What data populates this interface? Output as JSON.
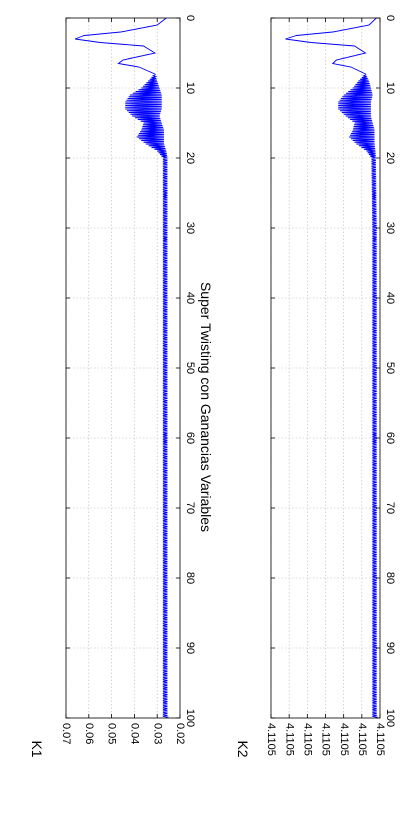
{
  "chart_data": [
    {
      "type": "line",
      "title": "Super Twisting con Ganancias Variables",
      "xlabel": "",
      "ylabel": "K1",
      "xlim": [
        0,
        100
      ],
      "ylim": [
        0.02,
        0.07
      ],
      "x_ticks": [
        "0",
        "10",
        "20",
        "30",
        "40",
        "50",
        "60",
        "70",
        "80",
        "90",
        "100"
      ],
      "y_ticks": [
        "0.02",
        "0.03",
        "0.04",
        "0.05",
        "0.06",
        "0.07"
      ],
      "grid": true,
      "color": "#0000ff",
      "series": [
        {
          "x": [
            0,
            1,
            2,
            2.5,
            3,
            3.5,
            4,
            5,
            6,
            6.5,
            7,
            8,
            9,
            10,
            11,
            12,
            13,
            14,
            15,
            16,
            17,
            18,
            19,
            20,
            30,
            40,
            50,
            60,
            70,
            80,
            90,
            100
          ],
          "y": [
            0.026,
            0.03,
            0.046,
            0.062,
            0.066,
            0.055,
            0.036,
            0.031,
            0.045,
            0.047,
            0.038,
            0.031,
            0.032,
            0.033,
            0.035,
            0.036,
            0.036,
            0.035,
            0.032,
            0.032,
            0.033,
            0.031,
            0.028,
            0.0265,
            0.0265,
            0.0265,
            0.0265,
            0.0265,
            0.0265,
            0.0265,
            0.0265,
            0.0265
          ],
          "ripple": [
            0,
            0,
            0,
            0,
            0,
            0,
            0,
            0,
            0,
            0,
            0,
            0,
            0.002,
            0.004,
            0.007,
            0.008,
            0.008,
            0.006,
            0.004,
            0.005,
            0.006,
            0.004,
            0.002,
            0.001,
            0.001,
            0.001,
            0.001,
            0.001,
            0.001,
            0.001,
            0.001,
            0.001
          ]
        }
      ]
    },
    {
      "type": "line",
      "title": "",
      "xlabel": "",
      "ylabel": "K2",
      "xlim": [
        0,
        100
      ],
      "ylim": [
        0,
        6
      ],
      "x_ticks": [
        "0",
        "10",
        "20",
        "30",
        "40",
        "50",
        "60",
        "70",
        "80",
        "90",
        "100"
      ],
      "y_ticks": [
        "4.1105",
        "4.1105",
        "4.1105",
        "4.1105",
        "4.1105",
        "4.1105",
        "4.1105"
      ],
      "grid": true,
      "color": "#0000ff",
      "series": [
        {
          "x": [
            0,
            1,
            2,
            2.5,
            3,
            3.5,
            4,
            5,
            6,
            6.5,
            7,
            8,
            9,
            10,
            11,
            12,
            13,
            14,
            15,
            16,
            17,
            18,
            19,
            20,
            30,
            40,
            50,
            60,
            70,
            80,
            90,
            100
          ],
          "y": [
            0.2,
            0.6,
            2.6,
            4.6,
            5.2,
            3.8,
            1.4,
            0.8,
            2.4,
            2.6,
            1.6,
            0.8,
            0.9,
            1.0,
            1.2,
            1.4,
            1.4,
            1.2,
            0.9,
            0.9,
            1.0,
            0.8,
            0.5,
            0.35,
            0.3,
            0.3,
            0.3,
            0.3,
            0.3,
            0.3,
            0.3,
            0.3
          ],
          "ripple": [
            0,
            0,
            0,
            0,
            0,
            0,
            0,
            0,
            0,
            0,
            0,
            0,
            0.3,
            0.5,
            0.8,
            0.9,
            0.9,
            0.7,
            0.5,
            0.6,
            0.7,
            0.5,
            0.25,
            0.12,
            0.12,
            0.12,
            0.12,
            0.12,
            0.12,
            0.12,
            0.12,
            0.12
          ]
        }
      ]
    }
  ]
}
